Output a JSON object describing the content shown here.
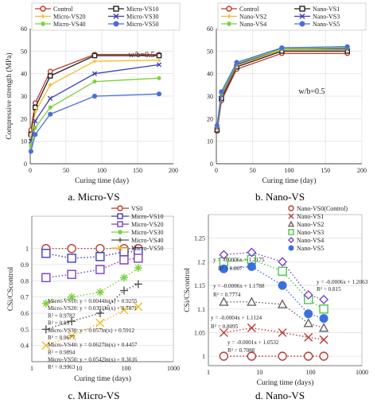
{
  "colors": {
    "control": "#c0392b",
    "vs10": "#222222",
    "vs20": "#7b3fbf",
    "vs30": "#3d3dbd",
    "vs40": "#7ccf3a",
    "vs50": "#f2bb2c",
    "n1": "#3b3bb8",
    "n2": "#7a7a7a",
    "n3": "#4cc64c",
    "n4": "#7b44c6",
    "n5": "#3b6fe0",
    "n0": "#b83a3a",
    "grid": "#e2e2e2",
    "axis": "#444444"
  },
  "chart_data": [
    {
      "type": "line",
      "caption": "a. Micro-VS",
      "xlabel": "Curing time (day)",
      "ylabel": "Compressive strength (MPa)",
      "annotation": "w/b=0.5",
      "xlim": [
        0,
        200
      ],
      "ylim": [
        0,
        60
      ],
      "xticks": [
        0,
        50,
        100,
        150,
        200
      ],
      "yticks": [
        0,
        10,
        20,
        30,
        40,
        50,
        60
      ],
      "legend_position": "top",
      "x": [
        1,
        7,
        28,
        90,
        180
      ],
      "series": [
        {
          "name": "Control",
          "values": [
            15,
            27,
            41,
            48.5,
            48.5
          ],
          "color": "#c0392b",
          "marker": "circle-open"
        },
        {
          "name": "Micro-VS10",
          "values": [
            13,
            25,
            39,
            48,
            48
          ],
          "color": "#222222",
          "marker": "square-open"
        },
        {
          "name": "Micro-VS20",
          "values": [
            12,
            23,
            35,
            45.5,
            46
          ],
          "color": "#f2bb2c",
          "marker": "plus"
        },
        {
          "name": "Micro-VS30",
          "values": [
            10,
            19,
            29,
            40,
            44
          ],
          "color": "#3d3dbd",
          "marker": "x"
        },
        {
          "name": "Micro-VS40",
          "values": [
            8,
            16,
            25,
            36.5,
            38
          ],
          "color": "#7ccf3a",
          "marker": "star"
        },
        {
          "name": "Micro-VS50",
          "values": [
            5.5,
            13,
            22,
            30,
            31
          ],
          "color": "#4a6fd8",
          "marker": "circle-filled"
        }
      ]
    },
    {
      "type": "line",
      "caption": "b. Nano-VS",
      "xlabel": "Curing time (day)",
      "ylabel": "",
      "annotation": "w/b=0.5",
      "xlim": [
        0,
        200
      ],
      "ylim": [
        0,
        60
      ],
      "xticks": [
        0,
        50,
        100,
        150,
        200
      ],
      "yticks": [
        0,
        10,
        20,
        30,
        40,
        50,
        60
      ],
      "legend_position": "top",
      "x": [
        1,
        7,
        28,
        90,
        180
      ],
      "series": [
        {
          "name": "Control",
          "values": [
            14.5,
            28,
            42,
            49,
            49
          ],
          "color": "#c0392b",
          "marker": "circle-open"
        },
        {
          "name": "Nano-VS1",
          "values": [
            15,
            29,
            43,
            50,
            50
          ],
          "color": "#222222",
          "marker": "square-open"
        },
        {
          "name": "Nano-VS2",
          "values": [
            15.5,
            30,
            43.5,
            50.5,
            50.5
          ],
          "color": "#f2bb2c",
          "marker": "plus"
        },
        {
          "name": "Nano-VS3",
          "values": [
            16,
            30.5,
            44,
            51,
            51
          ],
          "color": "#3d3dbd",
          "marker": "x"
        },
        {
          "name": "Nano-VS4",
          "values": [
            16.5,
            31,
            44.5,
            51,
            51.5
          ],
          "color": "#7ccf3a",
          "marker": "star"
        },
        {
          "name": "Nano-VS5",
          "values": [
            17,
            32,
            45,
            51.5,
            52
          ],
          "color": "#4a6fd8",
          "marker": "circle-filled"
        }
      ]
    },
    {
      "type": "scatter",
      "caption": "c. Micro-VS",
      "xlabel": "Curing time (days)",
      "ylabel": "CSi/CScontrol",
      "xscale": "log",
      "xlim": [
        1,
        1000
      ],
      "ylim": [
        0.3,
        1.2
      ],
      "xticks": [
        1,
        10,
        100,
        1000
      ],
      "yticks": [
        0.4,
        0.5,
        0.6,
        0.7,
        0.8,
        0.9,
        1
      ],
      "legend_position": "top-right",
      "x": [
        2,
        7,
        28,
        90,
        180
      ],
      "series": [
        {
          "name": "VS0",
          "values": [
            1.0,
            1.0,
            1.0,
            1.0,
            1.0
          ],
          "color": "#c0392b",
          "marker": "circle-open"
        },
        {
          "name": "Micro-VS10",
          "values": [
            0.97,
            0.94,
            0.95,
            0.98,
            0.98
          ],
          "color": "#3d3dbd",
          "marker": "square-open"
        },
        {
          "name": "Micro-VS20",
          "values": [
            0.82,
            0.84,
            0.87,
            0.93,
            0.94
          ],
          "color": "#7b3fbf",
          "marker": "square-open"
        },
        {
          "name": "Micro-VS30",
          "values": [
            0.66,
            0.7,
            0.73,
            0.82,
            0.88
          ],
          "color": "#7ccf3a",
          "marker": "star"
        },
        {
          "name": "Micro-VS40",
          "values": [
            0.5,
            0.55,
            0.6,
            0.74,
            0.78
          ],
          "color": "#555555",
          "marker": "plus"
        },
        {
          "name": "Micro-VS50",
          "values": [
            0.4,
            0.46,
            0.54,
            0.62,
            0.64
          ],
          "color": "#f2bb2c",
          "marker": "x"
        }
      ],
      "annotations": [
        "Micro-VS10: y = 0.0044ln(x) + 0.9255",
        "Micro-VS20: y = 0.0391ln(x) + 0.7871",
        "R² = 0.9782",
        "R² = 0.89",
        "Micro-VS30: y = 0.057ln(x) + 0.5912",
        "R² = 0.9677",
        "Micro-VS40: y = 0.0627ln(x) + 0.4457",
        "R² = 0.9894",
        "Micro-VS50: y = 0.0542ln(x) + 0.3616",
        "R² = 0.9963"
      ]
    },
    {
      "type": "scatter",
      "caption": "d. Nano-VS",
      "xlabel": "Curing time (days)",
      "ylabel": "CSi/CScontrol",
      "xscale": "log",
      "xlim": [
        1,
        1000
      ],
      "ylim": [
        0.98,
        1.3
      ],
      "xticks": [
        1,
        10,
        100,
        1000
      ],
      "yticks": [
        1,
        1.05,
        1.1,
        1.15,
        1.2,
        1.25
      ],
      "legend_position": "top-right",
      "x": [
        2,
        7,
        28,
        90,
        180
      ],
      "series": [
        {
          "name": "Nano-VS0(Control)",
          "values": [
            1.0,
            1.0,
            1.0,
            1.0,
            1.0
          ],
          "color": "#b83a3a",
          "marker": "circle-open"
        },
        {
          "name": "Nano-VS1",
          "values": [
            1.05,
            1.06,
            1.05,
            1.04,
            1.035
          ],
          "color": "#b83a3a",
          "marker": "x"
        },
        {
          "name": "Nano-VS2",
          "values": [
            1.115,
            1.115,
            1.11,
            1.07,
            1.06
          ],
          "color": "#666666",
          "marker": "triangle-open"
        },
        {
          "name": "Nano-VS3",
          "values": [
            1.2,
            1.205,
            1.18,
            1.12,
            1.1
          ],
          "color": "#4cc64c",
          "marker": "square-open"
        },
        {
          "name": "Nano-VS4",
          "values": [
            1.215,
            1.22,
            1.2,
            1.13,
            1.12
          ],
          "color": "#7b44c6",
          "marker": "diamond-open"
        },
        {
          "name": "Nano-VS5",
          "values": [
            1.185,
            1.19,
            1.15,
            1.09,
            1.08
          ],
          "color": "#3b6fe0",
          "marker": "circle-filled"
        }
      ],
      "annotations": [
        "y = -0.0006x + 1.2175",
        "R² = 0.807",
        "y = -0.0006x + 1.1788",
        "R² = 0.7774",
        "y = -0.0006x + 1.2063",
        "R² = 0.815",
        "y = -0.0004x + 1.1124",
        "R² = 0.8095",
        "y = -0.0001x + 1.0532",
        "R² = 0.7088"
      ]
    }
  ]
}
